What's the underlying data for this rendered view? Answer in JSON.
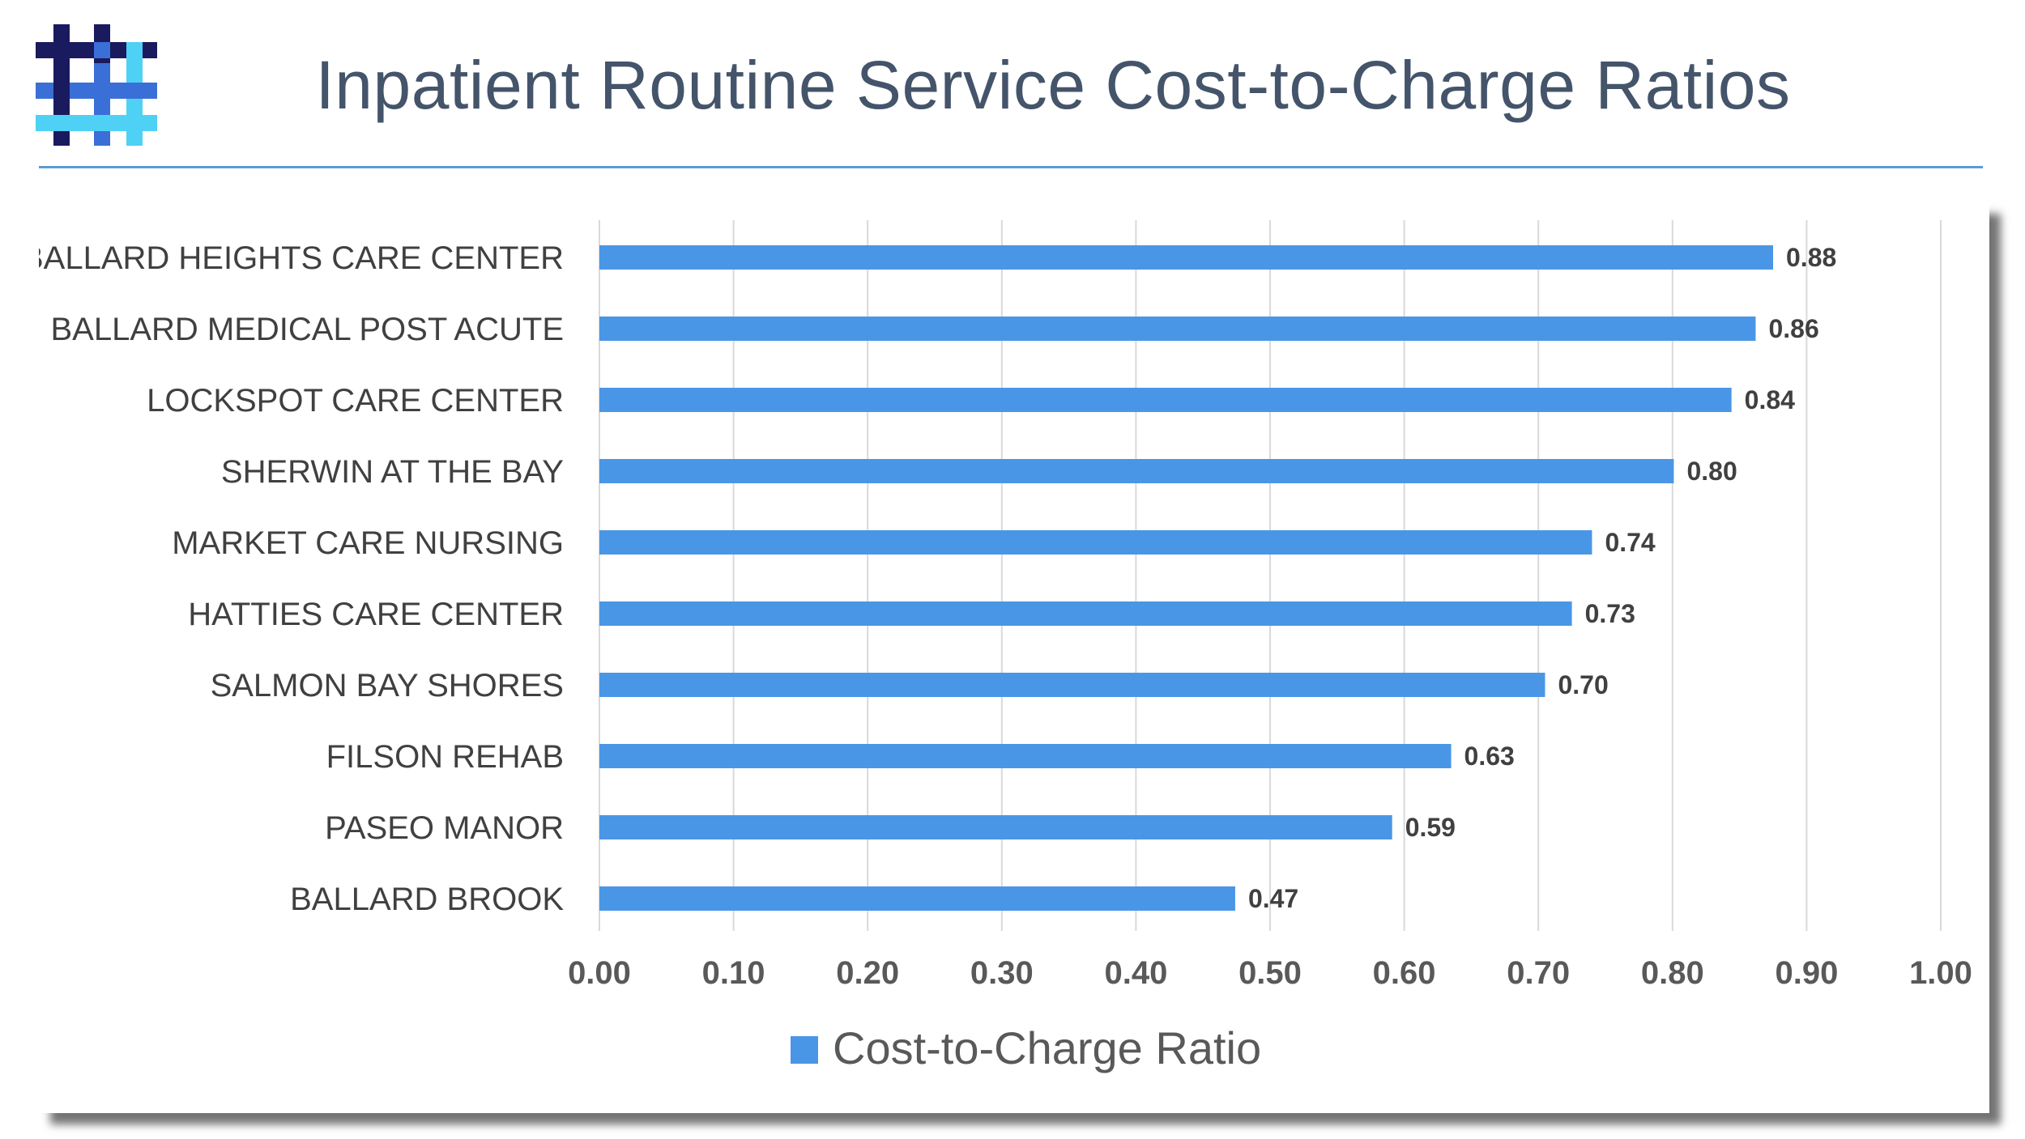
{
  "header": {
    "title": "Inpatient Routine Service Cost-to-Charge Ratios",
    "logo_icon": "hashtag-weave-logo",
    "colors": {
      "title": "#44546a",
      "rule": "#5b9bd5",
      "logo_dark": "#1a1a5e",
      "logo_mid": "#3a6fd8",
      "logo_light": "#4fd1f5"
    }
  },
  "chart_data": {
    "type": "bar",
    "orientation": "horizontal",
    "title": "",
    "xlabel": "",
    "ylabel": "",
    "xlim": [
      0,
      1
    ],
    "x_ticks": [
      "0.00",
      "0.10",
      "0.20",
      "0.30",
      "0.40",
      "0.50",
      "0.60",
      "0.70",
      "0.80",
      "0.90",
      "1.00"
    ],
    "grid": "vertical",
    "legend": "bottom",
    "bar_color": "#4a96e6",
    "categories": [
      "BALLARD HEIGHTS CARE CENTER",
      "BALLARD MEDICAL POST ACUTE",
      "LOCKSPOT CARE CENTER",
      "SHERWIN AT THE BAY",
      "MARKET CARE NURSING",
      "HATTIES CARE CENTER",
      "SALMON BAY SHORES",
      "FILSON REHAB",
      "PASEO MANOR",
      "BALLARD BROOK"
    ],
    "series": [
      {
        "name": "Cost-to-Charge Ratio",
        "values": [
          0.875,
          0.862,
          0.844,
          0.801,
          0.74,
          0.725,
          0.705,
          0.635,
          0.591,
          0.474
        ],
        "labels": [
          "0.88",
          "0.86",
          "0.84",
          "0.80",
          "0.74",
          "0.73",
          "0.70",
          "0.63",
          "0.59",
          "0.47"
        ]
      }
    ]
  }
}
